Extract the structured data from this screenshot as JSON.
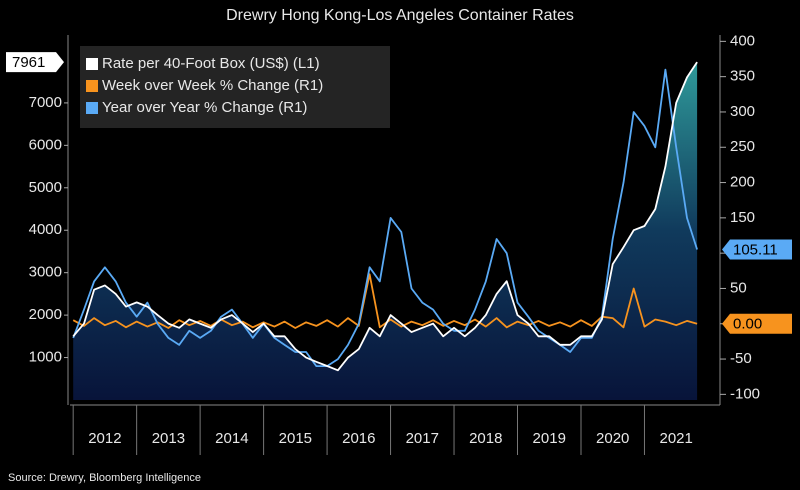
{
  "chart_data": {
    "type": "line",
    "title": "Drewry Hong Kong-Los Angeles Container Rates",
    "source": "Source: Drewry, Bloomberg Intelligence",
    "x": [
      2012.0,
      2012.17,
      2012.33,
      2012.5,
      2012.67,
      2012.83,
      2013.0,
      2013.17,
      2013.33,
      2013.5,
      2013.67,
      2013.83,
      2014.0,
      2014.17,
      2014.33,
      2014.5,
      2014.67,
      2014.83,
      2015.0,
      2015.17,
      2015.33,
      2015.5,
      2015.67,
      2015.83,
      2016.0,
      2016.17,
      2016.33,
      2016.5,
      2016.67,
      2016.83,
      2017.0,
      2017.17,
      2017.33,
      2017.5,
      2017.67,
      2017.83,
      2018.0,
      2018.17,
      2018.33,
      2018.5,
      2018.67,
      2018.83,
      2019.0,
      2019.17,
      2019.33,
      2019.5,
      2019.67,
      2019.83,
      2020.0,
      2020.17,
      2020.33,
      2020.5,
      2020.67,
      2020.83,
      2021.0,
      2021.17,
      2021.33,
      2021.5,
      2021.67,
      2021.83
    ],
    "xlim": [
      2011.95,
      2022.19
    ],
    "xticks": [
      {
        "value": 2012.5,
        "label": "2012"
      },
      {
        "value": 2013.5,
        "label": "2013"
      },
      {
        "value": 2014.5,
        "label": "2014"
      },
      {
        "value": 2015.5,
        "label": "2015"
      },
      {
        "value": 2016.5,
        "label": "2016"
      },
      {
        "value": 2017.5,
        "label": "2017"
      },
      {
        "value": 2018.5,
        "label": "2018"
      },
      {
        "value": 2019.5,
        "label": "2019"
      },
      {
        "value": 2020.5,
        "label": "2020"
      },
      {
        "value": 2021.5,
        "label": "2021"
      }
    ],
    "ylim": [
      0,
      8600
    ],
    "yticks": [
      1000,
      2000,
      3000,
      4000,
      5000,
      6000,
      7000
    ],
    "y2lim": [
      -108,
      409
    ],
    "y2ticks": [
      -100,
      -50,
      0,
      50,
      100,
      150,
      200,
      250,
      300,
      350,
      400
    ],
    "series": [
      {
        "name": "Rate per 40-Foot Box (US$) (L1)",
        "color": "#ffffff",
        "axis": "y",
        "values": [
          1500,
          1800,
          2600,
          2700,
          2500,
          2200,
          2300,
          2200,
          2000,
          1800,
          1700,
          1900,
          1800,
          1700,
          1900,
          2000,
          1800,
          1600,
          1800,
          1500,
          1500,
          1200,
          1000,
          900,
          800,
          700,
          1000,
          1200,
          1700,
          1500,
          2000,
          1800,
          1600,
          1700,
          1800,
          1500,
          1700,
          1500,
          1700,
          2000,
          2500,
          2800,
          2000,
          1800,
          1500,
          1500,
          1300,
          1300,
          1500,
          1500,
          1900,
          3200,
          3600,
          4000,
          4100,
          4500,
          5500,
          7000,
          7600,
          7961
        ],
        "value_labels": [
          null,
          null,
          null,
          null,
          null,
          null,
          null,
          null,
          null,
          null,
          null,
          null,
          null,
          null,
          null,
          null,
          null,
          null,
          null,
          null,
          null,
          null,
          null,
          null,
          null,
          null,
          null,
          null,
          null,
          null,
          null,
          null,
          null,
          null,
          null,
          null,
          null,
          null,
          null,
          null,
          null,
          null,
          null,
          null,
          null,
          null,
          null,
          null,
          null,
          null,
          null,
          null,
          null,
          null,
          null,
          null,
          null,
          null,
          null,
          "7961"
        ]
      },
      {
        "name": "Week over Week % Change (R1)",
        "color": "#f7931e",
        "axis": "y2",
        "values": [
          5,
          -3,
          8,
          -2,
          4,
          -5,
          3,
          -4,
          2,
          -6,
          5,
          -2,
          4,
          -3,
          6,
          -2,
          3,
          -5,
          2,
          -4,
          3,
          -6,
          2,
          -3,
          5,
          -4,
          8,
          -3,
          70,
          -5,
          6,
          -4,
          3,
          -2,
          5,
          -3,
          4,
          -2,
          6,
          -4,
          8,
          -5,
          3,
          -2,
          4,
          -3,
          2,
          -4,
          5,
          -3,
          10,
          8,
          -5,
          50,
          -4,
          6,
          3,
          -2,
          4,
          0
        ],
        "value_labels": [
          null,
          null,
          null,
          null,
          null,
          null,
          null,
          null,
          null,
          null,
          null,
          null,
          null,
          null,
          null,
          null,
          null,
          null,
          null,
          null,
          null,
          null,
          null,
          null,
          null,
          null,
          null,
          null,
          null,
          null,
          null,
          null,
          null,
          null,
          null,
          null,
          null,
          null,
          null,
          null,
          null,
          null,
          null,
          null,
          null,
          null,
          null,
          null,
          null,
          null,
          null,
          null,
          null,
          null,
          null,
          null,
          null,
          null,
          null,
          "0.00"
        ]
      },
      {
        "name": "Year over Year % Change (R1)",
        "color": "#5aaaf5",
        "axis": "y2",
        "values": [
          -20,
          20,
          60,
          80,
          60,
          30,
          10,
          30,
          0,
          -20,
          -30,
          -10,
          -20,
          -10,
          10,
          20,
          0,
          -20,
          0,
          -20,
          -30,
          -40,
          -40,
          -60,
          -60,
          -50,
          -30,
          0,
          80,
          60,
          150,
          130,
          50,
          30,
          20,
          0,
          -10,
          -10,
          20,
          60,
          120,
          100,
          30,
          10,
          -10,
          -20,
          -30,
          -40,
          -20,
          -20,
          10,
          120,
          200,
          300,
          280,
          250,
          360,
          250,
          150,
          105.11
        ],
        "value_labels": [
          null,
          null,
          null,
          null,
          null,
          null,
          null,
          null,
          null,
          null,
          null,
          null,
          null,
          null,
          null,
          null,
          null,
          null,
          null,
          null,
          null,
          null,
          null,
          null,
          null,
          null,
          null,
          null,
          null,
          null,
          null,
          null,
          null,
          null,
          null,
          null,
          null,
          null,
          null,
          null,
          null,
          null,
          null,
          null,
          null,
          null,
          null,
          null,
          null,
          null,
          null,
          null,
          null,
          null,
          null,
          null,
          null,
          null,
          null,
          "105.11"
        ]
      }
    ]
  }
}
